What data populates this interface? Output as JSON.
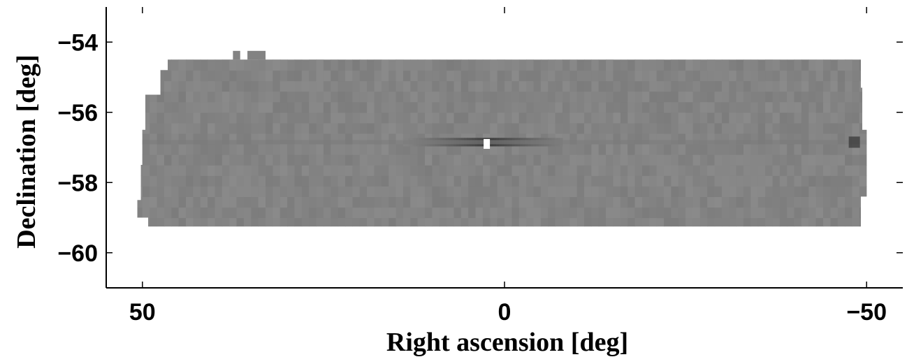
{
  "chart_data": {
    "type": "heatmap",
    "title": "",
    "xlabel": "Right ascension [deg]",
    "ylabel": "Declination [deg]",
    "xlim": [
      55,
      -55
    ],
    "ylim": [
      -61,
      -53
    ],
    "x_reversed": true,
    "x_ticks": [
      50,
      0,
      -50
    ],
    "x_tick_labels": [
      "50",
      "0",
      "−50"
    ],
    "y_ticks": [
      -54,
      -56,
      -58,
      -60
    ],
    "y_tick_labels": [
      "−54",
      "−56",
      "−58",
      "−60"
    ],
    "grid": false,
    "colormap": "gray",
    "colors": {
      "background_level": "#838383",
      "dark_feature": "#3a3a3a",
      "bright_feature": "#ffffff"
    },
    "footprint": {
      "ra_range": [
        50.7,
        -50.0
      ],
      "dec_range": [
        -59.25,
        -54.45
      ],
      "main_field_ra": [
        46.5,
        -49.2
      ],
      "main_field_dec": [
        -59.25,
        -54.5
      ]
    },
    "features": [
      {
        "label": "dark horizontal stripe",
        "dec": -56.85,
        "ra_range": [
          14,
          -8
        ]
      },
      {
        "label": "bright spot",
        "ra": 2.5,
        "dec": -56.9
      },
      {
        "label": "dark spot at east edge",
        "ra": -48.5,
        "dec": -56.85
      }
    ]
  }
}
